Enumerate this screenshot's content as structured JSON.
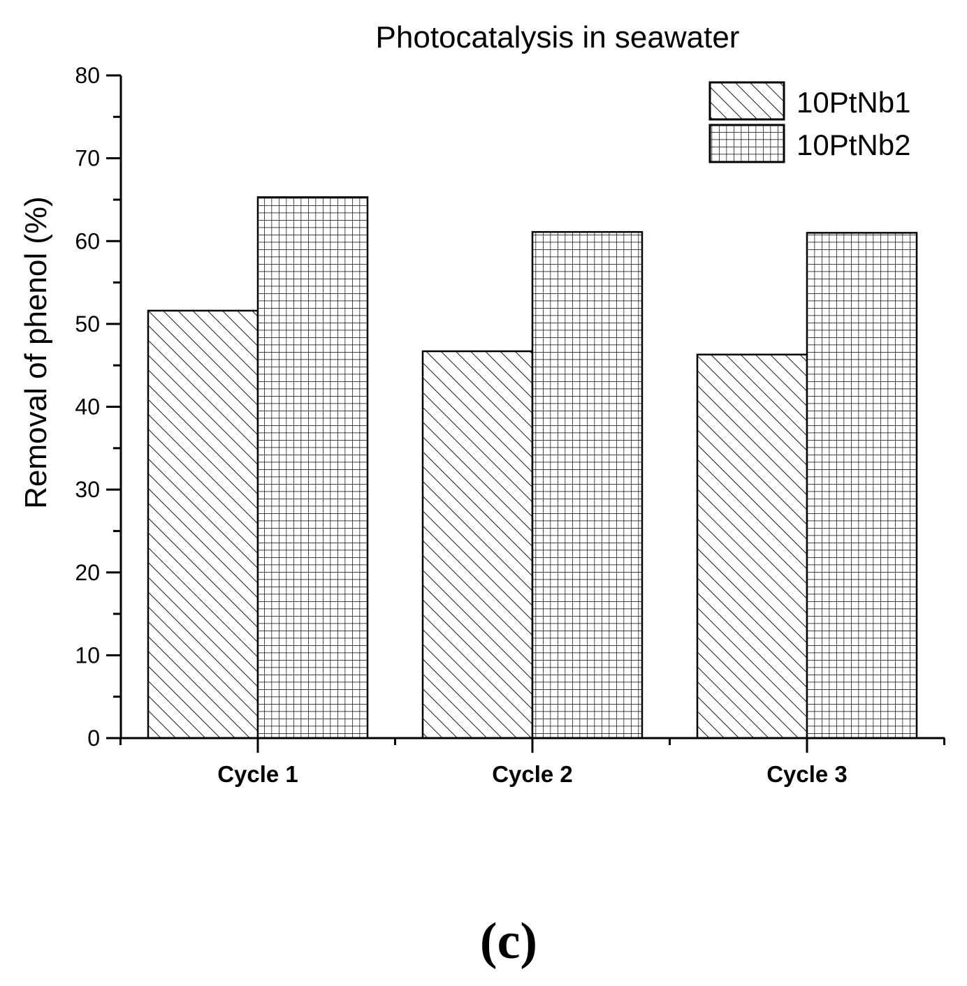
{
  "chart_data": {
    "type": "bar",
    "title": "Photocatalysis in seawater",
    "xlabel": "",
    "ylabel": "Removal of phenol (%)",
    "categories": [
      "Cycle 1",
      "Cycle 2",
      "Cycle 3"
    ],
    "series": [
      {
        "name": "10PtNb1",
        "values": [
          51.6,
          46.7,
          46.3
        ],
        "pattern": "diagonal-hatch"
      },
      {
        "name": "10PtNb2",
        "values": [
          65.3,
          61.1,
          61.0
        ],
        "pattern": "crosshatch-grid"
      }
    ],
    "ylim": [
      0,
      80
    ],
    "yticks": [
      0,
      10,
      20,
      30,
      40,
      50,
      60,
      70,
      80
    ],
    "ytick_labels": [
      "0",
      "10",
      "20",
      "30",
      "40",
      "50",
      "60",
      "70",
      "80"
    ],
    "grid": false,
    "legend_position": "top-right",
    "panel_label": "(c)"
  },
  "colors": {
    "ink": "#000000",
    "background": "#ffffff"
  }
}
